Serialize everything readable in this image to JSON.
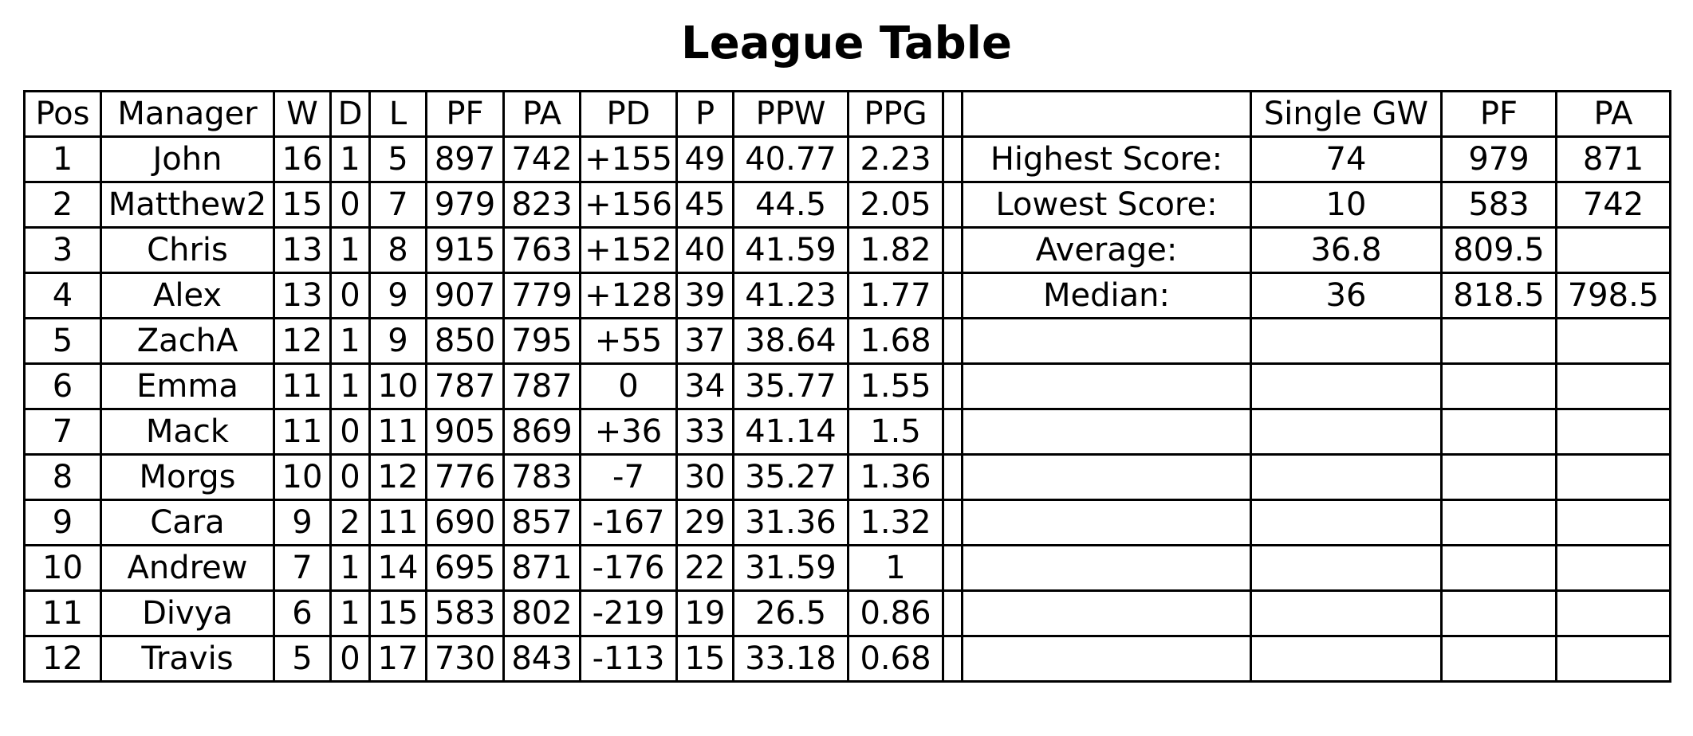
{
  "title": "League Table",
  "standings": {
    "headers": [
      "Pos",
      "Manager",
      "W",
      "D",
      "L",
      "PF",
      "PA",
      "PD",
      "P",
      "PPW",
      "PPG"
    ],
    "rows": [
      [
        "1",
        "John",
        "16",
        "1",
        "5",
        "897",
        "742",
        "+155",
        "49",
        "40.77",
        "2.23"
      ],
      [
        "2",
        "Matthew2",
        "15",
        "0",
        "7",
        "979",
        "823",
        "+156",
        "45",
        "44.5",
        "2.05"
      ],
      [
        "3",
        "Chris",
        "13",
        "1",
        "8",
        "915",
        "763",
        "+152",
        "40",
        "41.59",
        "1.82"
      ],
      [
        "4",
        "Alex",
        "13",
        "0",
        "9",
        "907",
        "779",
        "+128",
        "39",
        "41.23",
        "1.77"
      ],
      [
        "5",
        "ZachA",
        "12",
        "1",
        "9",
        "850",
        "795",
        "+55",
        "37",
        "38.64",
        "1.68"
      ],
      [
        "6",
        "Emma",
        "11",
        "1",
        "10",
        "787",
        "787",
        "0",
        "34",
        "35.77",
        "1.55"
      ],
      [
        "7",
        "Mack",
        "11",
        "0",
        "11",
        "905",
        "869",
        "+36",
        "33",
        "41.14",
        "1.5"
      ],
      [
        "8",
        "Morgs",
        "10",
        "0",
        "12",
        "776",
        "783",
        "-7",
        "30",
        "35.27",
        "1.36"
      ],
      [
        "9",
        "Cara",
        "9",
        "2",
        "11",
        "690",
        "857",
        "-167",
        "29",
        "31.36",
        "1.32"
      ],
      [
        "10",
        "Andrew",
        "7",
        "1",
        "14",
        "695",
        "871",
        "-176",
        "22",
        "31.59",
        "1"
      ],
      [
        "11",
        "Divya",
        "6",
        "1",
        "15",
        "583",
        "802",
        "-219",
        "19",
        "26.5",
        "0.86"
      ],
      [
        "12",
        "Travis",
        "5",
        "0",
        "17",
        "730",
        "843",
        "-113",
        "15",
        "33.18",
        "0.68"
      ]
    ]
  },
  "stats": {
    "headers": [
      "",
      "Single GW",
      "PF",
      "PA"
    ],
    "rows": [
      [
        "Highest Score:",
        "74",
        "979",
        "871"
      ],
      [
        "Lowest Score:",
        "10",
        "583",
        "742"
      ],
      [
        "Average:",
        "36.8",
        "809.5",
        ""
      ],
      [
        "Median:",
        "36",
        "818.5",
        "798.5"
      ],
      [
        "",
        "",
        "",
        ""
      ],
      [
        "",
        "",
        "",
        ""
      ],
      [
        "",
        "",
        "",
        ""
      ],
      [
        "",
        "",
        "",
        ""
      ],
      [
        "",
        "",
        "",
        ""
      ],
      [
        "",
        "",
        "",
        ""
      ],
      [
        "",
        "",
        "",
        ""
      ],
      [
        "",
        "",
        "",
        ""
      ]
    ]
  }
}
